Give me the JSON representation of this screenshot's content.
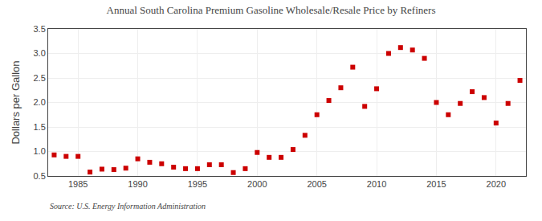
{
  "chart_data": {
    "type": "scatter",
    "title": "Annual South Carolina Premium Gasoline Wholesale/Resale Price by Refiners",
    "ylabel": "Dollars per Gallon",
    "annotations": [
      "Source: U.S. Energy Information Administration"
    ],
    "x": [
      1983,
      1984,
      1985,
      1986,
      1987,
      1988,
      1989,
      1990,
      1991,
      1992,
      1993,
      1994,
      1995,
      1996,
      1997,
      1998,
      1999,
      2000,
      2001,
      2002,
      2003,
      2004,
      2005,
      2006,
      2007,
      2008,
      2009,
      2010,
      2011,
      2012,
      2013,
      2014,
      2015,
      2016,
      2017,
      2018,
      2019,
      2020,
      2021,
      2022
    ],
    "values": [
      0.93,
      0.9,
      0.9,
      0.58,
      0.64,
      0.63,
      0.66,
      0.85,
      0.78,
      0.75,
      0.68,
      0.65,
      0.65,
      0.73,
      0.73,
      0.57,
      0.65,
      0.98,
      0.88,
      0.88,
      1.04,
      1.33,
      1.75,
      2.04,
      2.3,
      2.72,
      1.92,
      2.28,
      3.0,
      3.12,
      3.07,
      2.9,
      2.0,
      1.75,
      1.98,
      2.22,
      2.1,
      1.58,
      1.98,
      2.45
    ],
    "color": "#cc0000",
    "marker": "square",
    "xlim": [
      1982.5,
      2022.5
    ],
    "xticks": [
      1985,
      1990,
      1995,
      2000,
      2005,
      2010,
      2015,
      2020
    ],
    "ylim": [
      0.5,
      3.5
    ],
    "yticks": [
      0.5,
      {
        "value": 1.0,
        "label": "1.0"
      },
      1.5,
      {
        "value": 2.0,
        "label": "2.0"
      },
      2.5,
      {
        "value": 3.0,
        "label": "3.0"
      },
      3.5
    ],
    "grid": true
  }
}
